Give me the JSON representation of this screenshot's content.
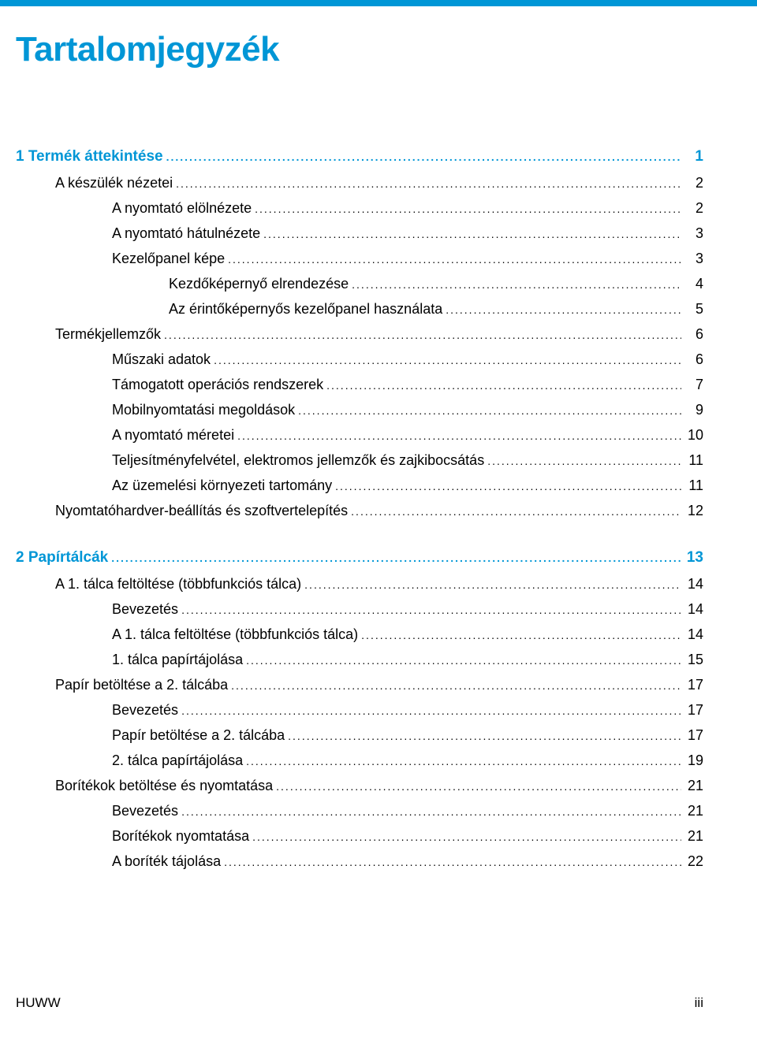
{
  "colors": {
    "brand": "#0096d6",
    "text": "#000000",
    "background": "#ffffff"
  },
  "title": "Tartalomjegyzék",
  "footer": {
    "left": "HUWW",
    "right": "iii"
  },
  "chapters": [
    {
      "num": "1",
      "title": "Termék áttekintése",
      "page": "1",
      "items": [
        {
          "l": 1,
          "t": "A készülék nézetei",
          "p": "2"
        },
        {
          "l": 2,
          "t": "A nyomtató elölnézete",
          "p": "2"
        },
        {
          "l": 2,
          "t": "A nyomtató hátulnézete",
          "p": "3"
        },
        {
          "l": 2,
          "t": "Kezelőpanel képe",
          "p": "3"
        },
        {
          "l": 3,
          "t": "Kezdőképernyő elrendezése",
          "p": "4"
        },
        {
          "l": 3,
          "t": "Az érintőképernyős kezelőpanel használata",
          "p": "5"
        },
        {
          "l": 1,
          "t": "Termékjellemzők",
          "p": "6"
        },
        {
          "l": 2,
          "t": "Műszaki adatok",
          "p": "6"
        },
        {
          "l": 2,
          "t": "Támogatott operációs rendszerek",
          "p": "7"
        },
        {
          "l": 2,
          "t": "Mobilnyomtatási megoldások",
          "p": "9"
        },
        {
          "l": 2,
          "t": "A nyomtató méretei",
          "p": "10"
        },
        {
          "l": 2,
          "t": "Teljesítményfelvétel, elektromos jellemzők és zajkibocsátás",
          "p": "11"
        },
        {
          "l": 2,
          "t": "Az üzemelési környezeti tartomány",
          "p": "11"
        },
        {
          "l": 1,
          "t": "Nyomtatóhardver-beállítás és szoftvertelepítés",
          "p": "12"
        }
      ]
    },
    {
      "num": "2",
      "title": "Papírtálcák",
      "page": "13",
      "items": [
        {
          "l": 1,
          "t": "A 1. tálca feltöltése (többfunkciós tálca)",
          "p": "14"
        },
        {
          "l": 2,
          "t": "Bevezetés",
          "p": "14"
        },
        {
          "l": 2,
          "t": "A 1. tálca feltöltése (többfunkciós tálca)",
          "p": "14"
        },
        {
          "l": 2,
          "t": "1. tálca papírtájolása",
          "p": "15"
        },
        {
          "l": 1,
          "t": "Papír betöltése a 2. tálcába",
          "p": "17"
        },
        {
          "l": 2,
          "t": "Bevezetés",
          "p": "17"
        },
        {
          "l": 2,
          "t": "Papír betöltése a 2. tálcába",
          "p": "17"
        },
        {
          "l": 2,
          "t": "2. tálca papírtájolása",
          "p": "19"
        },
        {
          "l": 1,
          "t": "Borítékok betöltése és nyomtatása",
          "p": "21"
        },
        {
          "l": 2,
          "t": "Bevezetés",
          "p": "21"
        },
        {
          "l": 2,
          "t": "Borítékok nyomtatása",
          "p": "21"
        },
        {
          "l": 2,
          "t": "A boríték tájolása",
          "p": "22"
        }
      ]
    }
  ]
}
